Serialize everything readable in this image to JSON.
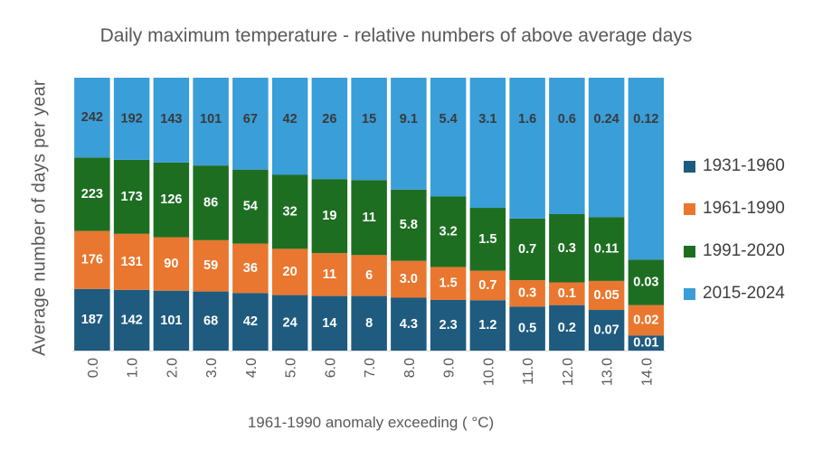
{
  "chart_data": {
    "type": "bar",
    "stacked": true,
    "normalized": true,
    "title": "Daily maximum temperature - relative numbers of above average days",
    "xlabel": "1961-1990 anomaly exceeding ( °C)",
    "ylabel": "Average number of days per year",
    "categories": [
      "0.0",
      "1.0",
      "2.0",
      "3.0",
      "4.0",
      "5.0",
      "6.0",
      "7.0",
      "8.0",
      "9.0",
      "10.0",
      "11.0",
      "12.0",
      "13.0",
      "14.0"
    ],
    "series": [
      {
        "name": "1931-1960",
        "color": "#1f5b7f",
        "values": [
          "187",
          "142",
          "101",
          "68",
          "42",
          "24",
          "14",
          "8",
          "4.3",
          "2.3",
          "1.2",
          "0.5",
          "0.2",
          "0.07",
          "0.01"
        ]
      },
      {
        "name": "1961-1990",
        "color": "#e9772f",
        "values": [
          "176",
          "131",
          "90",
          "59",
          "36",
          "20",
          "11",
          "6",
          "3.0",
          "1.5",
          "0.7",
          "0.3",
          "0.1",
          "0.05",
          "0.02"
        ]
      },
      {
        "name": "1991-2020",
        "color": "#1e6e22",
        "values": [
          "223",
          "173",
          "126",
          "86",
          "54",
          "32",
          "19",
          "11",
          "5.8",
          "3.2",
          "1.5",
          "0.7",
          "0.3",
          "0.11",
          "0.03"
        ]
      },
      {
        "name": "2015-2024",
        "color": "#3a9ed8",
        "values": [
          "242",
          "192",
          "143",
          "101",
          "67",
          "42",
          "26",
          "15",
          "9.1",
          "5.4",
          "3.1",
          "1.6",
          "0.6",
          "0.24",
          "0.12"
        ]
      }
    ],
    "legend_position": "right"
  }
}
